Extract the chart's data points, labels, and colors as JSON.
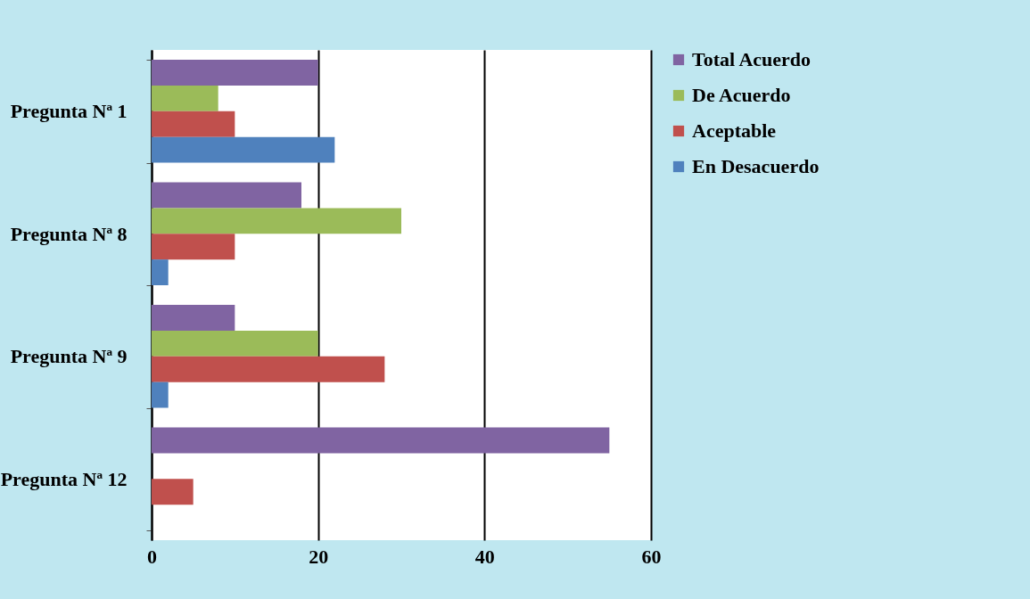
{
  "chart_data": {
    "type": "bar",
    "orientation": "horizontal",
    "categories": [
      "Pregunta Nª 1",
      "Pregunta Nª 8",
      "Pregunta Nª 9",
      "Pregunta Nª 12"
    ],
    "series": [
      {
        "name": "Total Acuerdo",
        "color": "#8064a2",
        "values": [
          20,
          18,
          10,
          55
        ]
      },
      {
        "name": "De Acuerdo",
        "color": "#9bbb59",
        "values": [
          8,
          30,
          20,
          0
        ]
      },
      {
        "name": "Aceptable",
        "color": "#c0504d",
        "values": [
          10,
          10,
          28,
          5
        ]
      },
      {
        "name": "En Desacuerdo",
        "color": "#4f81bd",
        "values": [
          22,
          2,
          2,
          0
        ]
      }
    ],
    "xlim": [
      0,
      60
    ],
    "xticks": [
      0,
      20,
      40,
      60
    ],
    "grid": "x",
    "legend": "right"
  }
}
